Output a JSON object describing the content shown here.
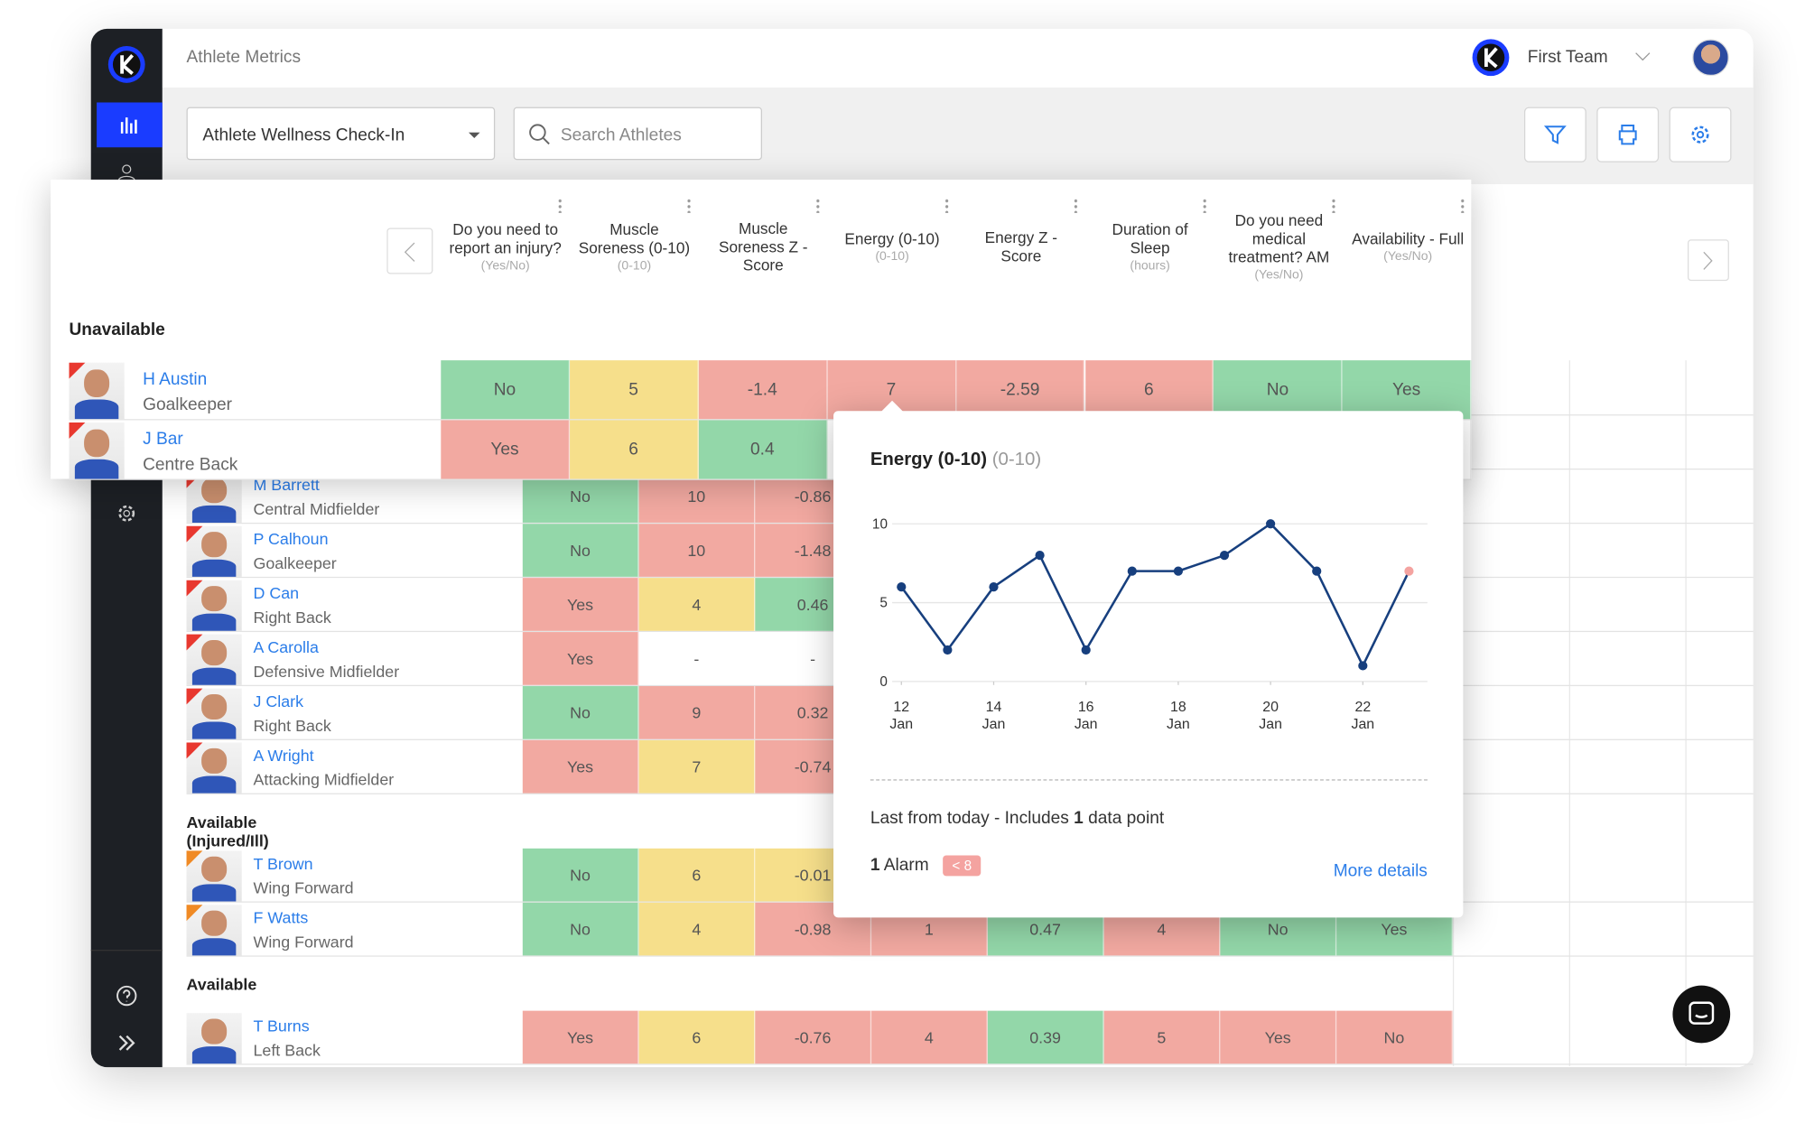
{
  "header": {
    "title": "Athlete Metrics",
    "team": "First Team"
  },
  "toolbar": {
    "form": "Athlete Wellness Check-In",
    "search_placeholder": "Search Athletes"
  },
  "columns": [
    {
      "title": "Do you need to report an injury?",
      "unit": "(Yes/No)"
    },
    {
      "title": "Muscle Soreness (0-10)",
      "unit": "(0-10)"
    },
    {
      "title": "Muscle Soreness Z - Score"
    },
    {
      "title": "Energy (0-10)",
      "unit": "(0-10)"
    },
    {
      "title": "Energy Z - Score"
    },
    {
      "title": "Duration of Sleep",
      "unit": "(hours)"
    },
    {
      "title": "Do you need medical treatment? AM",
      "unit": "(Yes/No)"
    },
    {
      "title": "Availability - Full",
      "unit": "(Yes/No)"
    }
  ],
  "front": {
    "group": "Unavailable",
    "flag": "red",
    "rows": [
      {
        "name": "H Austin",
        "position": "Goalkeeper",
        "cells": [
          {
            "text": "No",
            "tone": "green"
          },
          {
            "text": "5",
            "tone": "yellow"
          },
          {
            "text": "-1.4",
            "tone": "red"
          },
          {
            "text": "7",
            "tone": "red"
          },
          {
            "text": "-2.59",
            "tone": "red"
          },
          {
            "text": "6",
            "tone": "red"
          },
          {
            "text": "No",
            "tone": "green"
          },
          {
            "text": "Yes",
            "tone": "green"
          }
        ]
      },
      {
        "name": "J Bar",
        "position": "Centre Back",
        "cells": [
          {
            "text": "Yes",
            "tone": "red"
          },
          {
            "text": "6",
            "tone": "yellow"
          },
          {
            "text": "0.4",
            "tone": "green"
          }
        ]
      }
    ]
  },
  "table": {
    "groups": [
      {
        "flag": "red",
        "rows": [
          {
            "name": "M Barrett",
            "position": "Central Midfielder",
            "cells": [
              {
                "text": "No",
                "tone": "green"
              },
              {
                "text": "10",
                "tone": "red"
              },
              {
                "text": "-0.86",
                "tone": "red"
              }
            ]
          },
          {
            "name": "P Calhoun",
            "position": "Goalkeeper",
            "cells": [
              {
                "text": "No",
                "tone": "green"
              },
              {
                "text": "10",
                "tone": "red"
              },
              {
                "text": "-1.48",
                "tone": "red"
              }
            ]
          },
          {
            "name": "D Can",
            "position": "Right Back",
            "cells": [
              {
                "text": "Yes",
                "tone": "red"
              },
              {
                "text": "4",
                "tone": "yellow"
              },
              {
                "text": "0.46",
                "tone": "green"
              }
            ]
          },
          {
            "name": "A Carolla",
            "position": "Defensive Midfielder",
            "cells": [
              {
                "text": "Yes",
                "tone": "red"
              },
              {
                "text": "-",
                "tone": "white"
              },
              {
                "text": "-",
                "tone": "white"
              }
            ]
          },
          {
            "name": "J Clark",
            "position": "Right Back",
            "cells": [
              {
                "text": "No",
                "tone": "green"
              },
              {
                "text": "9",
                "tone": "red"
              },
              {
                "text": "0.32",
                "tone": "red"
              }
            ]
          },
          {
            "name": "A Wright",
            "position": "Attacking Midfielder",
            "cells": [
              {
                "text": "Yes",
                "tone": "red"
              },
              {
                "text": "7",
                "tone": "yellow"
              },
              {
                "text": "-0.74",
                "tone": "red"
              }
            ]
          }
        ]
      },
      {
        "label": "Available (Injured/Ill)",
        "flag": "orange",
        "rows": [
          {
            "name": "T Brown",
            "position": "Wing Forward",
            "cells": [
              {
                "text": "No",
                "tone": "green"
              },
              {
                "text": "6",
                "tone": "yellow"
              },
              {
                "text": "-0.01",
                "tone": "yellow"
              }
            ]
          },
          {
            "name": "F Watts",
            "position": "Wing Forward",
            "cells": [
              {
                "text": "No",
                "tone": "green"
              },
              {
                "text": "4",
                "tone": "yellow"
              },
              {
                "text": "-0.98",
                "tone": "red"
              },
              {
                "text": "1",
                "tone": "red"
              },
              {
                "text": "0.47",
                "tone": "green"
              },
              {
                "text": "4",
                "tone": "red"
              },
              {
                "text": "No",
                "tone": "green"
              },
              {
                "text": "Yes",
                "tone": "green"
              }
            ]
          }
        ]
      },
      {
        "label": "Available",
        "rows": [
          {
            "name": "T Burns",
            "position": "Left Back",
            "cells": [
              {
                "text": "Yes",
                "tone": "red"
              },
              {
                "text": "6",
                "tone": "yellow"
              },
              {
                "text": "-0.76",
                "tone": "red"
              },
              {
                "text": "4",
                "tone": "red"
              },
              {
                "text": "0.39",
                "tone": "green"
              },
              {
                "text": "5",
                "tone": "red"
              },
              {
                "text": "Yes",
                "tone": "red"
              },
              {
                "text": "No",
                "tone": "red"
              }
            ]
          }
        ]
      }
    ]
  },
  "tooltip": {
    "title": "Energy (0-10)",
    "unit": "(0-10)",
    "chart": {
      "type": "line",
      "color": "#173f7e",
      "alarm_color": "#f4a3a0",
      "highlight_last": true,
      "grid": true,
      "x": [
        12,
        13,
        14,
        15,
        16,
        17,
        18,
        19,
        20,
        21,
        22,
        23
      ],
      "values": [
        6,
        2,
        6,
        8,
        2,
        7,
        7,
        8,
        10,
        7,
        1,
        7
      ],
      "xlim": [
        11.8,
        23.4
      ],
      "ylim": [
        0,
        10
      ],
      "yticks": [
        0,
        5,
        10
      ],
      "xticks": [
        {
          "value": 12,
          "label": "12\nJan"
        },
        {
          "value": 14,
          "label": "14\nJan"
        },
        {
          "value": 16,
          "label": "16\nJan"
        },
        {
          "value": 18,
          "label": "18\nJan"
        },
        {
          "value": 20,
          "label": "20\nJan"
        },
        {
          "value": 22,
          "label": "22\nJan"
        }
      ]
    },
    "summary": {
      "before": "Last from today - Includes",
      "count": "1",
      "after": "data point"
    },
    "alarms": {
      "count": "1",
      "label": "Alarm",
      "badge": "< 8"
    },
    "link": "More details"
  }
}
